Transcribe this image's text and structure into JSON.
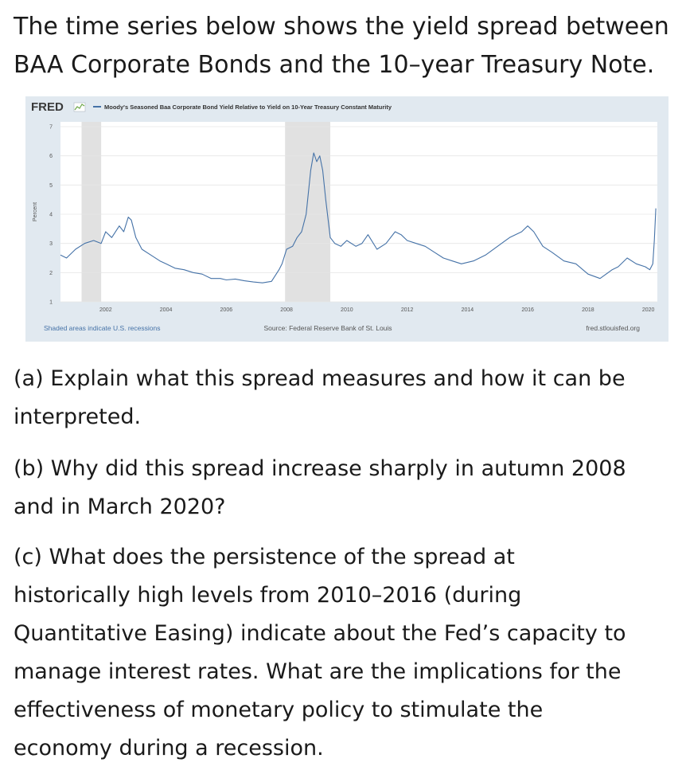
{
  "intro": {
    "line1": "The time series below shows the yield spread between",
    "line2": "BAA Corporate Bonds and the 10–year Treasury Note."
  },
  "fred": {
    "logo": "FRED",
    "legend_label": "Moody's Seasoned Baa Corporate Bond Yield Relative to Yield on 10-Year Treasury Constant Maturity",
    "footer_left": "Shaded areas indicate U.S. recessions",
    "footer_center": "Source: Federal Reserve Bank of St. Louis",
    "footer_right": "fred.stlouisfed.org",
    "series_color": "#4572a7",
    "recession_color": "#e1e1e1",
    "background_color": "#e1e9f0"
  },
  "chart_data": {
    "type": "line",
    "title": "",
    "xlabel": "",
    "ylabel": "Percent",
    "xlim": [
      2000.5,
      2020.3
    ],
    "ylim": [
      1,
      7
    ],
    "yticks": [
      1,
      2,
      3,
      4,
      5,
      6,
      7
    ],
    "xticks": [
      2002,
      2004,
      2006,
      2008,
      2010,
      2012,
      2014,
      2016,
      2018,
      2020
    ],
    "grid": true,
    "legend": "top-left",
    "recessions": [
      [
        2001.2,
        2001.85
      ],
      [
        2007.95,
        2009.45
      ]
    ],
    "series": [
      {
        "name": "Moody's Seasoned Baa Corporate Bond Yield Relative to Yield on 10-Year Treasury Constant Maturity",
        "x": [
          2000.5,
          2000.7,
          2001.0,
          2001.3,
          2001.6,
          2001.85,
          2002.0,
          2002.2,
          2002.45,
          2002.6,
          2002.75,
          2002.85,
          2003.0,
          2003.2,
          2003.5,
          2003.8,
          2004.0,
          2004.3,
          2004.6,
          2004.9,
          2005.2,
          2005.5,
          2005.8,
          2006.0,
          2006.3,
          2006.6,
          2006.9,
          2007.2,
          2007.5,
          2007.75,
          2007.85,
          2008.0,
          2008.2,
          2008.35,
          2008.5,
          2008.65,
          2008.8,
          2008.9,
          2009.0,
          2009.1,
          2009.2,
          2009.3,
          2009.45,
          2009.6,
          2009.8,
          2010.0,
          2010.3,
          2010.5,
          2010.7,
          2011.0,
          2011.3,
          2011.6,
          2011.8,
          2012.0,
          2012.3,
          2012.6,
          2012.9,
          2013.2,
          2013.5,
          2013.8,
          2014.2,
          2014.6,
          2015.0,
          2015.4,
          2015.8,
          2016.0,
          2016.2,
          2016.5,
          2016.8,
          2017.2,
          2017.6,
          2018.0,
          2018.4,
          2018.8,
          2019.0,
          2019.3,
          2019.6,
          2019.9,
          2020.05,
          2020.15,
          2020.2,
          2020.25
        ],
        "y": [
          2.6,
          2.5,
          2.8,
          3.0,
          3.1,
          3.0,
          3.4,
          3.2,
          3.6,
          3.4,
          3.9,
          3.8,
          3.2,
          2.8,
          2.6,
          2.4,
          2.3,
          2.15,
          2.1,
          2.0,
          1.95,
          1.8,
          1.8,
          1.75,
          1.78,
          1.72,
          1.68,
          1.65,
          1.7,
          2.1,
          2.3,
          2.8,
          2.9,
          3.2,
          3.4,
          4.0,
          5.5,
          6.1,
          5.8,
          6.0,
          5.5,
          4.5,
          3.2,
          3.0,
          2.9,
          3.1,
          2.9,
          3.0,
          3.3,
          2.8,
          3.0,
          3.4,
          3.3,
          3.1,
          3.0,
          2.9,
          2.7,
          2.5,
          2.4,
          2.3,
          2.4,
          2.6,
          2.9,
          3.2,
          3.4,
          3.6,
          3.4,
          2.9,
          2.7,
          2.4,
          2.3,
          1.95,
          1.8,
          2.1,
          2.2,
          2.5,
          2.3,
          2.2,
          2.1,
          2.3,
          3.1,
          4.2
        ]
      }
    ]
  },
  "questions": {
    "a": {
      "line1": "(a) Explain what this spread measures and how it can be",
      "line2": "interpreted."
    },
    "b": {
      "line1": "(b) Why did this spread increase sharply in autumn 2008",
      "line2": "and in March 2020?"
    },
    "c": {
      "line1": "(c) What does the persistence of the spread at",
      "line2": "historically high levels from 2010–2016 (during",
      "line3": "Quantitative Easing) indicate about the Fed’s capacity to",
      "line4": "manage interest rates. What are the implications for the",
      "line5": "effectiveness of monetary policy to stimulate the",
      "line6": "economy during a recession."
    }
  }
}
